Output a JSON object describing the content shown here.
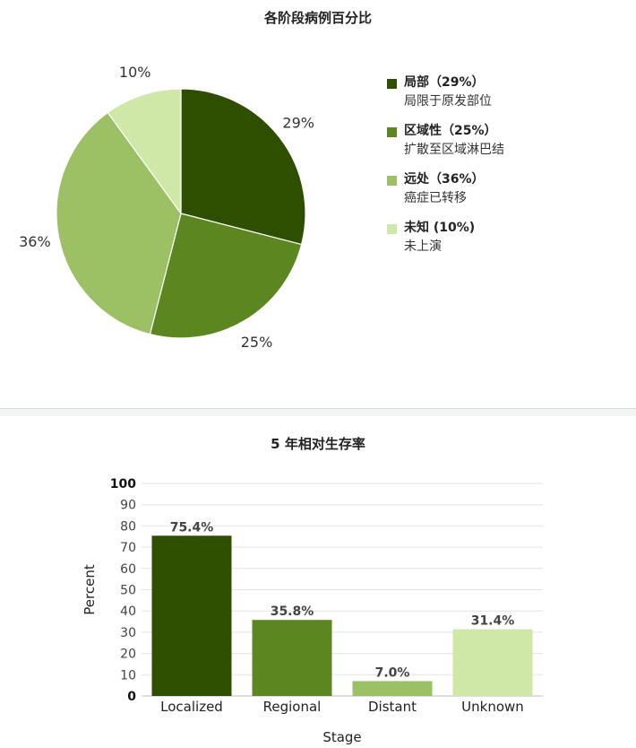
{
  "chart_data": [
    {
      "type": "pie",
      "title": "各阶段病例百分比",
      "legend_position": "right",
      "slices": [
        {
          "name": "局部（29%）",
          "desc": "局限于原发部位",
          "value": 29,
          "label": "29%",
          "color": "#2f4f00"
        },
        {
          "name": "区域性（25%）",
          "desc": "扩散至区域淋巴结",
          "value": 25,
          "label": "25%",
          "color": "#5c8720"
        },
        {
          "name": "远处（36%）",
          "desc": "癌症已转移",
          "value": 36,
          "label": "36%",
          "color": "#9bc164"
        },
        {
          "name": "未知 (10%)",
          "desc": "未上演",
          "value": 10,
          "label": "10%",
          "color": "#cfe8a8"
        }
      ]
    },
    {
      "type": "bar",
      "title": "5 年相对生存率",
      "xlabel": "Stage",
      "ylabel": "Percent",
      "ylim": [
        0,
        100
      ],
      "ytick_values": [
        0,
        10,
        20,
        30,
        40,
        50,
        60,
        70,
        80,
        90,
        100
      ],
      "yticks": [
        "0",
        "10",
        "20",
        "30",
        "40",
        "50",
        "60",
        "70",
        "80",
        "90",
        "100"
      ],
      "grid": true,
      "categories": [
        "Localized",
        "Regional",
        "Distant",
        "Unknown"
      ],
      "values": [
        75.4,
        35.8,
        7.0,
        31.4
      ],
      "value_labels": [
        "75.4%",
        "35.8%",
        "7.0%",
        "31.4%"
      ],
      "colors": [
        "#2f4f00",
        "#5c8720",
        "#9bc164",
        "#cfe8a8"
      ]
    }
  ]
}
